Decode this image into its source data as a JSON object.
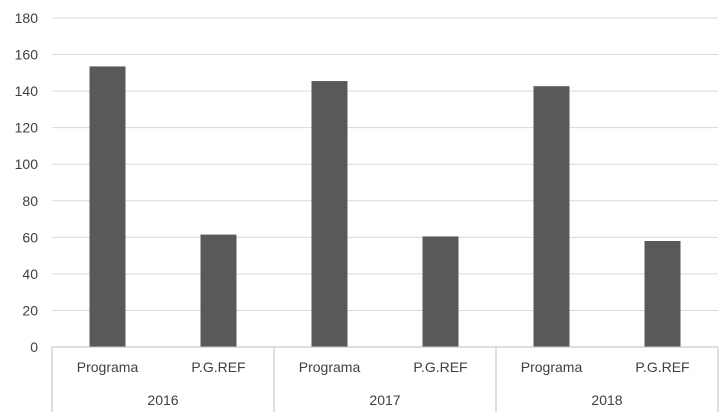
{
  "chart_data": {
    "type": "bar",
    "groups": [
      {
        "label": "2016",
        "categories": [
          "Programa",
          "P.G.REF"
        ],
        "values": [
          153.5,
          61.5
        ]
      },
      {
        "label": "2017",
        "categories": [
          "Programa",
          "P.G.REF"
        ],
        "values": [
          145.5,
          60.5
        ]
      },
      {
        "label": "2018",
        "categories": [
          "Programa",
          "P.G.REF"
        ],
        "values": [
          142.7,
          58
        ]
      }
    ],
    "title": "",
    "xlabel": "",
    "ylabel": "",
    "ylim": [
      0,
      180
    ],
    "yticks": [
      0,
      20,
      40,
      60,
      80,
      100,
      120,
      140,
      160,
      180
    ],
    "grid": true,
    "legend": "none",
    "colors": {
      "bar": "#595959",
      "grid": "#d9d9d9",
      "axis": "#bfbfbf",
      "text": "#404040"
    }
  }
}
